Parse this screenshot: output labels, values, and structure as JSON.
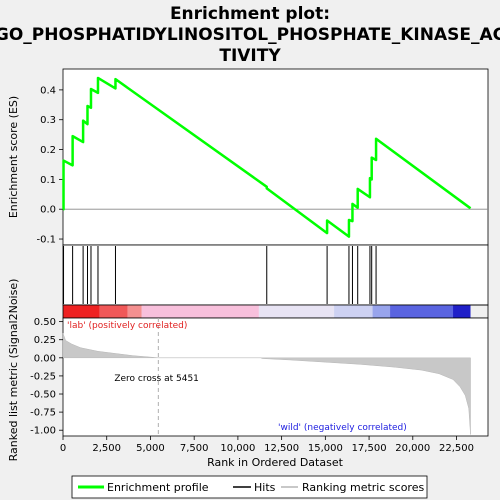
{
  "chart_data": {
    "type": "line",
    "title_line1": "Enrichment plot:",
    "title_line2": "GO_PHOSPHATIDYLINOSITOL_PHOSPHATE_KINASE_AC",
    "title_line3": "TIVITY",
    "ylabel_top": "Enrichment score (ES)",
    "ylabel_bottom": "Ranked list metric (Signal2Noise)",
    "xlabel": "Rank in Ordered Dataset",
    "x_range": [
      0,
      24300
    ],
    "es_ylim": [
      -0.12,
      0.47
    ],
    "metric_ylim": [
      -1.08,
      0.55
    ],
    "es_yticks": [
      -0.1,
      0.0,
      0.1,
      0.2,
      0.3,
      0.4
    ],
    "es_ytick_labels": [
      "-0.1",
      "0.0",
      "0.1",
      "0.2",
      "0.3",
      "0.4"
    ],
    "metric_yticks": [
      -1.0,
      -0.75,
      -0.5,
      -0.25,
      0.0,
      0.25,
      0.5
    ],
    "metric_ytick_labels": [
      "-1.00",
      "-0.75",
      "-0.50",
      "-0.25",
      "0.00",
      "0.25",
      "0.50"
    ],
    "xticks": [
      0,
      2500,
      5000,
      7500,
      10000,
      12500,
      15000,
      17500,
      20000,
      22500
    ],
    "xtick_labels": [
      "0",
      "2,500",
      "5,000",
      "7,500",
      "10,000",
      "12,500",
      "15,000",
      "17,500",
      "20,000",
      "22,500"
    ],
    "hits": [
      30,
      550,
      1150,
      1400,
      1600,
      2000,
      3000,
      11650,
      15100,
      16350,
      16550,
      16850,
      17550,
      17650,
      17900
    ],
    "es_profile": {
      "x": [
        0,
        30,
        30,
        550,
        550,
        1150,
        1150,
        1400,
        1400,
        1600,
        1600,
        2000,
        2000,
        3000,
        3000,
        11650,
        11650,
        15100,
        15100,
        16350,
        16350,
        16550,
        16550,
        16850,
        16850,
        17550,
        17550,
        17650,
        17650,
        17900,
        17900,
        23300
      ],
      "es": [
        0.0,
        0.0,
        0.163,
        0.147,
        0.245,
        0.225,
        0.297,
        0.285,
        0.346,
        0.34,
        0.403,
        0.39,
        0.44,
        0.405,
        0.436,
        0.075,
        0.07,
        -0.08,
        -0.038,
        -0.092,
        -0.036,
        -0.04,
        0.018,
        0.005,
        0.068,
        0.04,
        0.104,
        0.1,
        0.173,
        0.165,
        0.236,
        0.003
      ]
    },
    "metric_profile": {
      "x": [
        0,
        150,
        500,
        1000,
        2000,
        3000,
        4000,
        5000,
        5451,
        8000,
        11300,
        11400,
        13000,
        15000,
        17000,
        19000,
        20500,
        21500,
        22300,
        22700,
        23000,
        23200,
        23300
      ],
      "y": [
        0.34,
        0.24,
        0.19,
        0.14,
        0.09,
        0.06,
        0.03,
        0.01,
        0.0,
        0.0,
        0.0,
        -0.01,
        -0.03,
        -0.06,
        -0.09,
        -0.13,
        -0.17,
        -0.22,
        -0.3,
        -0.4,
        -0.52,
        -0.7,
        -1.06
      ]
    },
    "zero_cross": 5451,
    "zero_cross_label": "Zero cross at 5451",
    "pos_label": "'lab' (positively correlated)",
    "neg_label": "'wild' (negatively correlated)",
    "heat_segments": [
      {
        "start": 0,
        "end": 2100,
        "color": "#ee2222"
      },
      {
        "start": 2100,
        "end": 3700,
        "color": "#f05858"
      },
      {
        "start": 3700,
        "end": 4500,
        "color": "#f49090"
      },
      {
        "start": 4500,
        "end": 11200,
        "color": "#f8c0dc"
      },
      {
        "start": 11200,
        "end": 15500,
        "color": "#e8e4f4"
      },
      {
        "start": 15500,
        "end": 17700,
        "color": "#cdd1f2"
      },
      {
        "start": 17700,
        "end": 18700,
        "color": "#98a4ec"
      },
      {
        "start": 18700,
        "end": 22300,
        "color": "#5a64e0"
      },
      {
        "start": 22300,
        "end": 23300,
        "color": "#2020c8"
      }
    ],
    "colors": {
      "es_line": "#00ff00",
      "hit_line": "#000000",
      "metric_fill": "#c8c8c8",
      "pos_label": "#e02020",
      "neg_label": "#2020e0",
      "zero_cross_line": "#b0b0b0"
    },
    "legend": [
      {
        "label": "Enrichment profile",
        "icon": "green-line-icon"
      },
      {
        "label": "Hits",
        "icon": "black-line-icon"
      },
      {
        "label": "Ranking metric scores",
        "icon": "gray-line-icon"
      }
    ]
  }
}
